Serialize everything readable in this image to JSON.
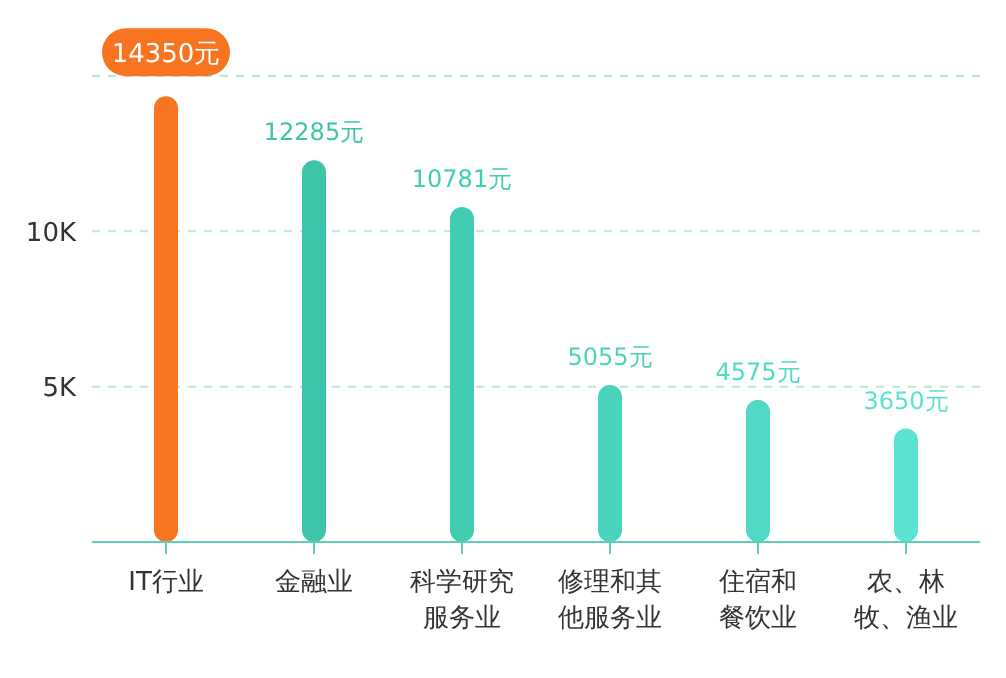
{
  "chart_data": {
    "type": "bar",
    "categories": [
      "IT行业",
      "金融业",
      "科学研究服务业",
      "修理和其他服务业",
      "住宿和餐饮业",
      "农、林牧、渔业"
    ],
    "values": [
      14350,
      12285,
      10781,
      5055,
      4575,
      3650
    ],
    "value_labels": [
      "14350元",
      "12285元",
      "10781元",
      "5055元",
      "4575元",
      "3650元"
    ],
    "colors": [
      "#f87421",
      "#3ec5a9",
      "#42cdb3",
      "#4ad3bd",
      "#52d9c6",
      "#5ce2d0"
    ],
    "ylim": [
      0,
      15000
    ],
    "yticks": [
      {
        "value": 5000,
        "label": "5K"
      },
      {
        "value": 10000,
        "label": "10K"
      }
    ],
    "grid": "y"
  }
}
